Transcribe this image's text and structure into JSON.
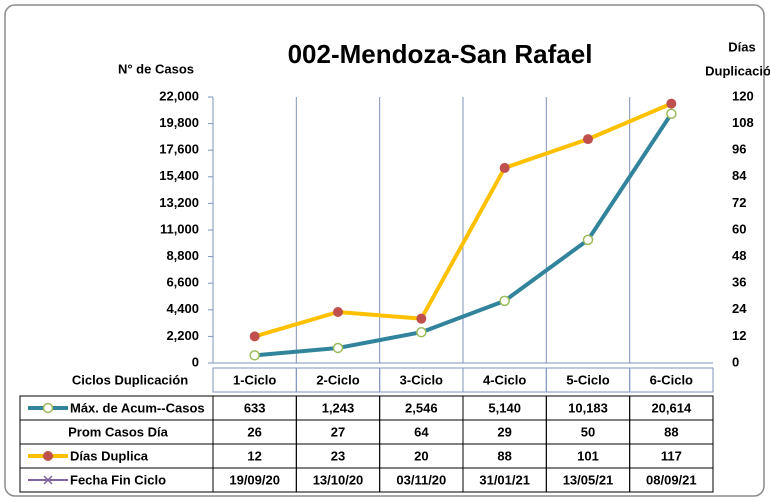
{
  "chart_data": {
    "type": "line",
    "title": "002-Mendoza-San Rafael",
    "y_label": "N° de Casos",
    "y2_label": [
      "Días",
      "Duplicación"
    ],
    "x_label": "Ciclos Duplicación",
    "categories": [
      "1-Ciclo",
      "2-Ciclo",
      "3-Ciclo",
      "4-Ciclo",
      "5-Ciclo",
      "6-Ciclo"
    ],
    "ylim": [
      0,
      22000
    ],
    "yticks": [
      {
        "value": 0,
        "label": "0"
      },
      {
        "value": 2200,
        "label": "2,200"
      },
      {
        "value": 4400,
        "label": "4,400"
      },
      {
        "value": 6600,
        "label": "6,600"
      },
      {
        "value": 8800,
        "label": "8,800"
      },
      {
        "value": 11000,
        "label": "11,000"
      },
      {
        "value": 13200,
        "label": "13,200"
      },
      {
        "value": 15400,
        "label": "15,400"
      },
      {
        "value": 17600,
        "label": "17,600"
      },
      {
        "value": 19800,
        "label": "19,800"
      },
      {
        "value": 22000,
        "label": "22,000"
      }
    ],
    "y2lim": [
      0,
      120
    ],
    "y2ticks": [
      0,
      12,
      24,
      36,
      48,
      60,
      72,
      84,
      96,
      108,
      120
    ],
    "series": [
      {
        "name": "Máx. de Acum--Casos",
        "color": "#31849b",
        "marker_color": "#9bbb59",
        "axis": "y",
        "values": [
          633,
          1243,
          2546,
          5140,
          10183,
          20614
        ],
        "value_labels": [
          "633",
          "1,243",
          "2,546",
          "5,140",
          "10,183",
          "20,614"
        ]
      },
      {
        "name": "Prom Casos Día",
        "values": [
          26,
          27,
          64,
          29,
          50,
          88
        ]
      },
      {
        "name": "Días Duplica",
        "color": "#ffc000",
        "marker_color": "#c0504d",
        "axis": "y2",
        "values": [
          12,
          23,
          20,
          88,
          101,
          117
        ]
      },
      {
        "name": "Fecha Fin Ciclo",
        "color": "#8064a2",
        "values": [
          "19/09/20",
          "13/10/20",
          "03/11/20",
          "31/01/21",
          "13/05/21",
          "08/09/21"
        ]
      }
    ]
  }
}
